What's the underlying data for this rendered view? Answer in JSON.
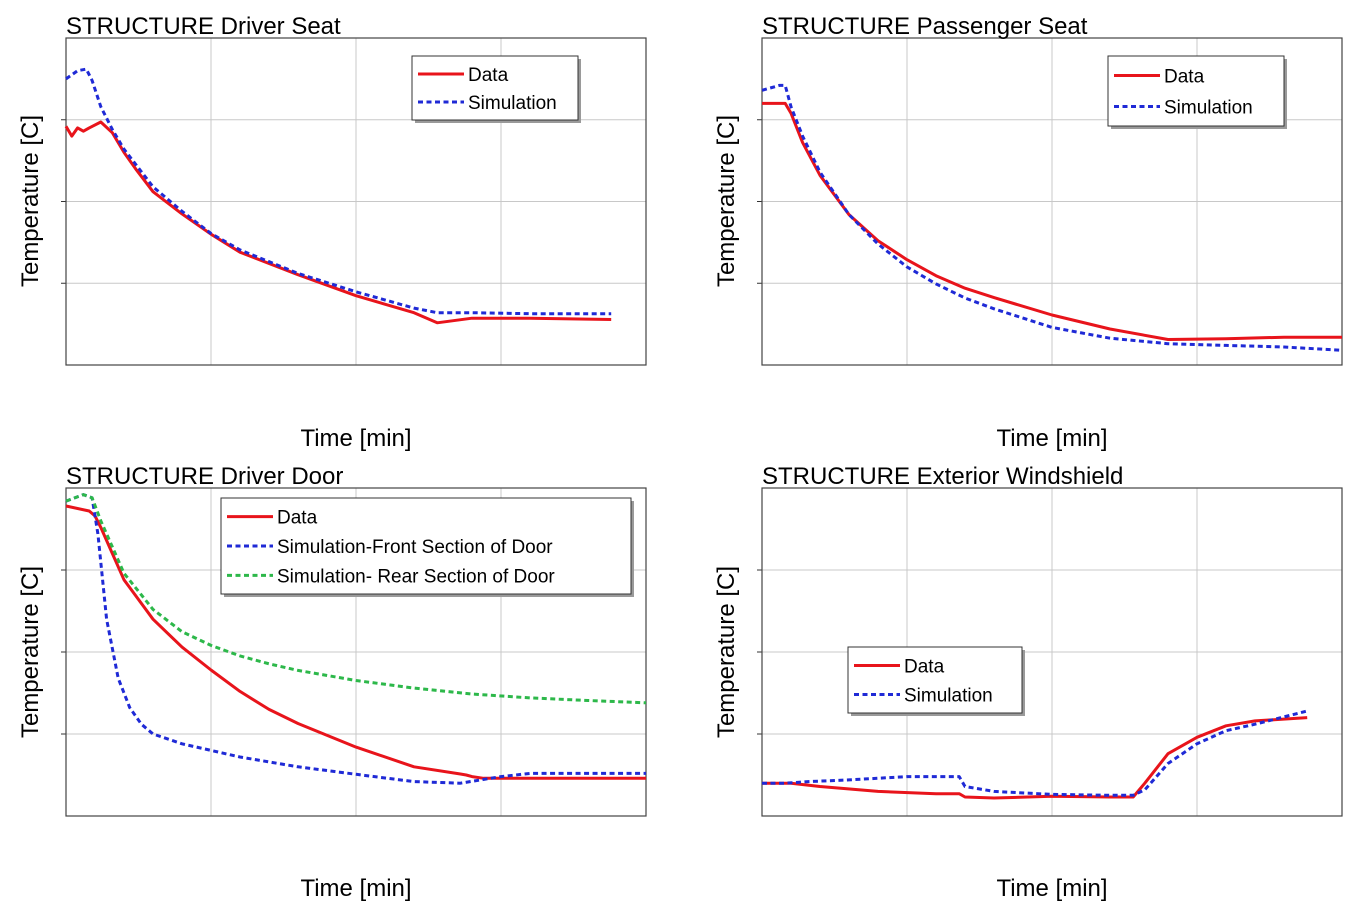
{
  "chart_data": [
    {
      "type": "line",
      "title": "STRUCTURE Driver Seat",
      "xlabel": "Time [min]",
      "ylabel": "Temperature [C]",
      "grid": true,
      "legend_position": "top-right",
      "colors": {
        "data": "#e8141b",
        "sim": "#1f2ad6"
      },
      "series": [
        {
          "name": "Data",
          "style": "solid",
          "color": "#e8141b",
          "x": [
            0,
            0.01,
            0.02,
            0.03,
            0.04,
            0.06,
            0.08,
            0.1,
            0.12,
            0.15,
            0.2,
            0.25,
            0.3,
            0.4,
            0.5,
            0.6,
            0.64,
            0.7,
            0.8,
            0.94
          ],
          "y": [
            0.73,
            0.7,
            0.725,
            0.715,
            0.725,
            0.743,
            0.71,
            0.65,
            0.6,
            0.53,
            0.462,
            0.4,
            0.345,
            0.276,
            0.212,
            0.16,
            0.129,
            0.143,
            0.143,
            0.139
          ]
        },
        {
          "name": "Simulation",
          "style": "dotted",
          "color": "#1f2ad6",
          "x": [
            0,
            0.02,
            0.035,
            0.045,
            0.06,
            0.08,
            0.1,
            0.15,
            0.2,
            0.25,
            0.3,
            0.4,
            0.5,
            0.6,
            0.64,
            0.7,
            0.8,
            0.94
          ],
          "y": [
            0.875,
            0.9,
            0.905,
            0.87,
            0.79,
            0.72,
            0.66,
            0.545,
            0.47,
            0.402,
            0.352,
            0.28,
            0.224,
            0.174,
            0.16,
            0.16,
            0.157,
            0.157
          ]
        }
      ]
    },
    {
      "type": "line",
      "title": "STRUCTURE Passenger Seat",
      "xlabel": "Time [min]",
      "ylabel": "Temperature [C]",
      "grid": true,
      "legend_position": "top-right",
      "colors": {
        "data": "#e8141b",
        "sim": "#1f2ad6"
      },
      "series": [
        {
          "name": "Data",
          "style": "solid",
          "color": "#e8141b",
          "x": [
            0,
            0.04,
            0.05,
            0.07,
            0.1,
            0.15,
            0.2,
            0.25,
            0.3,
            0.35,
            0.4,
            0.5,
            0.6,
            0.7,
            0.8,
            0.9,
            1.0
          ],
          "y": [
            0.8,
            0.8,
            0.77,
            0.68,
            0.58,
            0.46,
            0.38,
            0.322,
            0.273,
            0.235,
            0.206,
            0.153,
            0.11,
            0.078,
            0.08,
            0.085,
            0.085
          ]
        },
        {
          "name": "Simulation",
          "style": "dotted",
          "color": "#1f2ad6",
          "x": [
            0,
            0.03,
            0.04,
            0.05,
            0.07,
            0.1,
            0.15,
            0.2,
            0.25,
            0.3,
            0.35,
            0.4,
            0.5,
            0.6,
            0.7,
            0.8,
            0.9,
            1.0
          ],
          "y": [
            0.84,
            0.855,
            0.855,
            0.79,
            0.7,
            0.59,
            0.46,
            0.37,
            0.3,
            0.248,
            0.205,
            0.172,
            0.115,
            0.082,
            0.065,
            0.06,
            0.055,
            0.045
          ]
        }
      ]
    },
    {
      "type": "line",
      "title": "STRUCTURE Driver Door",
      "xlabel": "Time [min]",
      "ylabel": "Temperature [C]",
      "grid": true,
      "legend_position": "top-center",
      "colors": {
        "data": "#e8141b",
        "front": "#1f2ad6",
        "rear": "#2db84a"
      },
      "series": [
        {
          "name": "Data",
          "style": "solid",
          "color": "#e8141b",
          "x": [
            0,
            0.04,
            0.05,
            0.06,
            0.08,
            0.1,
            0.15,
            0.2,
            0.25,
            0.3,
            0.35,
            0.4,
            0.5,
            0.6,
            0.68,
            0.69,
            0.7,
            0.72,
            0.8,
            0.9,
            1.0
          ],
          "y": [
            0.945,
            0.93,
            0.915,
            0.88,
            0.8,
            0.72,
            0.6,
            0.515,
            0.445,
            0.38,
            0.325,
            0.282,
            0.21,
            0.15,
            0.128,
            0.125,
            0.12,
            0.115,
            0.115,
            0.115,
            0.115
          ]
        },
        {
          "name": "Simulation-Front Section of Door",
          "style": "dotted",
          "color": "#1f2ad6",
          "x": [
            0,
            0.03,
            0.045,
            0.055,
            0.07,
            0.09,
            0.11,
            0.13,
            0.15,
            0.2,
            0.3,
            0.4,
            0.5,
            0.6,
            0.68,
            0.75,
            0.8,
            0.9,
            1.0
          ],
          "y": [
            0.96,
            0.98,
            0.97,
            0.86,
            0.6,
            0.42,
            0.33,
            0.28,
            0.25,
            0.22,
            0.18,
            0.15,
            0.127,
            0.105,
            0.1,
            0.12,
            0.13,
            0.13,
            0.13
          ]
        },
        {
          "name": "Simulation- Rear Section of Door",
          "style": "dotted",
          "color": "#2db84a",
          "x": [
            0,
            0.03,
            0.045,
            0.06,
            0.08,
            0.1,
            0.15,
            0.2,
            0.25,
            0.3,
            0.35,
            0.4,
            0.5,
            0.6,
            0.7,
            0.8,
            0.9,
            1.0
          ],
          "y": [
            0.96,
            0.98,
            0.97,
            0.9,
            0.82,
            0.74,
            0.63,
            0.562,
            0.52,
            0.488,
            0.464,
            0.444,
            0.413,
            0.39,
            0.372,
            0.36,
            0.352,
            0.345
          ]
        }
      ]
    },
    {
      "type": "line",
      "title": "STRUCTURE Exterior Windshield",
      "xlabel": "Time [min]",
      "ylabel": "Temperature [C]",
      "grid": true,
      "legend_position": "middle-left",
      "colors": {
        "data": "#e8141b",
        "sim": "#1f2ad6"
      },
      "series": [
        {
          "name": "Data",
          "style": "solid",
          "color": "#e8141b",
          "x": [
            0,
            0.05,
            0.1,
            0.2,
            0.3,
            0.34,
            0.35,
            0.4,
            0.5,
            0.6,
            0.64,
            0.66,
            0.7,
            0.75,
            0.8,
            0.85,
            0.94
          ],
          "y": [
            0.1,
            0.1,
            0.09,
            0.075,
            0.068,
            0.068,
            0.058,
            0.055,
            0.06,
            0.058,
            0.058,
            0.1,
            0.19,
            0.24,
            0.275,
            0.29,
            0.3
          ]
        },
        {
          "name": "Simulation",
          "style": "dotted",
          "color": "#1f2ad6",
          "x": [
            0,
            0.04,
            0.08,
            0.15,
            0.25,
            0.34,
            0.35,
            0.4,
            0.5,
            0.6,
            0.64,
            0.66,
            0.7,
            0.75,
            0.8,
            0.85,
            0.94
          ],
          "y": [
            0.1,
            0.1,
            0.105,
            0.11,
            0.12,
            0.12,
            0.09,
            0.075,
            0.066,
            0.063,
            0.063,
            0.08,
            0.16,
            0.22,
            0.26,
            0.28,
            0.32
          ]
        }
      ]
    }
  ]
}
